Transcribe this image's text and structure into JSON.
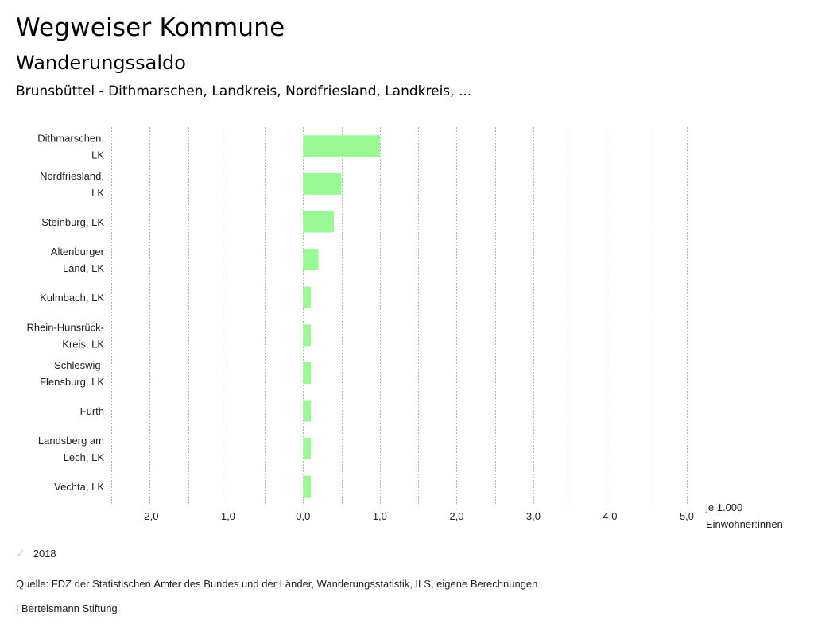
{
  "header": {
    "title": "Wegweiser Kommune",
    "subtitle": "Wanderungssaldo",
    "selection": "Brunsbüttel - Dithmarschen, Landkreis, Nordfriesland, Landkreis, ..."
  },
  "chart_data": {
    "type": "bar",
    "orientation": "horizontal",
    "title": "Wanderungssaldo",
    "categories": [
      [
        "Dithmarschen,",
        "LK"
      ],
      [
        "Nordfriesland,",
        "LK"
      ],
      [
        "Steinburg, LK"
      ],
      [
        "Altenburger",
        "Land, LK"
      ],
      [
        "Kulmbach, LK"
      ],
      [
        "Rhein-Hunsrück-",
        "Kreis, LK"
      ],
      [
        "Schleswig-",
        "Flensburg, LK"
      ],
      [
        "Fürth"
      ],
      [
        "Landsberg am",
        "Lech, LK"
      ],
      [
        "Vechta, LK"
      ]
    ],
    "series": [
      {
        "name": "2018",
        "color": "#99f993",
        "values": [
          1.0,
          0.5,
          0.4,
          0.2,
          0.1,
          0.1,
          0.1,
          0.1,
          0.1,
          0.1
        ]
      }
    ],
    "xlim": [
      -2.5,
      5.0
    ],
    "xticks": [
      -2.0,
      -1.0,
      0.0,
      1.0,
      2.0,
      3.0,
      4.0,
      5.0
    ],
    "xtick_labels": [
      "-2,0",
      "-1,0",
      "0,0",
      "1,0",
      "2,0",
      "3,0",
      "4,0",
      "5,0"
    ],
    "grid_step": 0.5,
    "grid": true,
    "xlabel": [
      "je 1.000",
      "Einwohner:innen"
    ],
    "ylabel": "",
    "legend": {
      "position": "bottom-left",
      "entries": [
        "2018"
      ]
    }
  },
  "legend": {
    "label": "2018",
    "icon": "check-icon"
  },
  "footer": {
    "source": "Quelle: FDZ der Statistischen Ämter des Bundes und der Länder, Wanderungsstatistik, ILS, eigene Berechnungen",
    "credit": "| Bertelsmann Stiftung"
  }
}
